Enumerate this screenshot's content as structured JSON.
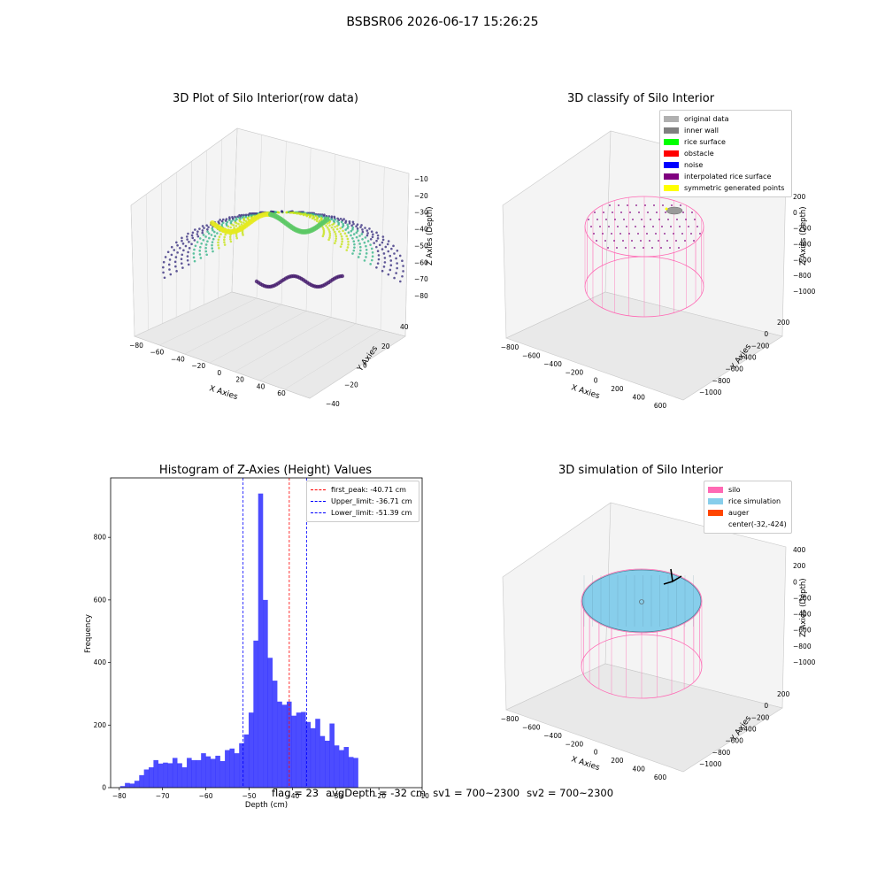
{
  "figure": {
    "title": "BSBSR06 2026-06-17 15:26:25",
    "footer": {
      "flag": "flag = 23",
      "avg_depth": "avgDepth = -32 cm",
      "sv1": "sv1 = 700~2300",
      "sv2": "sv2 = 700~2300"
    }
  },
  "panels": {
    "raw": {
      "title": "3D Plot of Silo Interior(row data)",
      "xlabel": "X Axies",
      "ylabel": "Y Axies",
      "zlabel": "Z Axies (Depth)",
      "x_ticks": [
        "−80",
        "−60",
        "−40",
        "−20",
        "0",
        "20",
        "40",
        "60"
      ],
      "y_ticks": [
        "−40",
        "−20",
        "0",
        "20",
        "40"
      ],
      "z_ticks": [
        "−10",
        "−20",
        "−30",
        "−40",
        "−50",
        "−60",
        "−70",
        "−80"
      ]
    },
    "classify": {
      "title": "3D classify of Silo Interior",
      "xlabel": "X Axies",
      "ylabel": "Y Axies",
      "zlabel": "Z Axies (Depth)",
      "x_ticks": [
        "−800",
        "−600",
        "−400",
        "−200",
        "0",
        "200",
        "400",
        "600"
      ],
      "y_ticks": [
        "200",
        "0",
        "−200",
        "−400",
        "−600",
        "−800",
        "−1000"
      ],
      "z_ticks": [
        "200",
        "0",
        "−200",
        "−400",
        "−600",
        "−800",
        "−1000"
      ],
      "legend": [
        {
          "label": "original data",
          "color": "#b0b0b0"
        },
        {
          "label": "inner wall",
          "color": "#808080"
        },
        {
          "label": "rice surface",
          "color": "#00ff00"
        },
        {
          "label": "obstacle",
          "color": "#ff0000"
        },
        {
          "label": "noise",
          "color": "#0000ff"
        },
        {
          "label": "interpolated rice surface",
          "color": "#800080"
        },
        {
          "label": "symmetric generated points",
          "color": "#ffff00"
        }
      ]
    },
    "simulation": {
      "title": "3D simulation of Silo Interior",
      "xlabel": "X Axies",
      "ylabel": "Y Axies",
      "zlabel": "Z Axies (Depth)",
      "x_ticks": [
        "−800",
        "−600",
        "−400",
        "−200",
        "0",
        "200",
        "400",
        "600"
      ],
      "y_ticks": [
        "200",
        "0",
        "−200",
        "−400",
        "−600",
        "−800",
        "−1000"
      ],
      "z_ticks": [
        "400",
        "200",
        "0",
        "−200",
        "−400",
        "−600",
        "−800",
        "−1000"
      ],
      "legend": [
        {
          "label": "silo",
          "color": "#ff69b4"
        },
        {
          "label": "rice simulation",
          "color": "#87ceeb"
        },
        {
          "label": "auger",
          "color": "#ff4500"
        },
        {
          "label": "center(-32,-424)",
          "color": ""
        }
      ]
    }
  },
  "chart_data": {
    "type": "bar",
    "title": "Histogram of Z-Axies (Height) Values",
    "xlabel": "Depth (cm)",
    "ylabel": "Frequency",
    "xlim": [
      -82,
      -10
    ],
    "ylim": [
      0,
      990
    ],
    "x_ticks": [
      -80,
      -70,
      -60,
      -50,
      -40,
      -30,
      -20,
      -10
    ],
    "y_ticks": [
      0,
      200,
      400,
      600,
      800
    ],
    "bar_color": "#0000ff",
    "bin_start": -79.8,
    "bin_width": 1.1,
    "values": [
      5,
      15,
      13,
      22,
      40,
      58,
      65,
      88,
      77,
      80,
      78,
      95,
      78,
      65,
      95,
      88,
      88,
      110,
      100,
      92,
      102,
      85,
      120,
      125,
      110,
      142,
      170,
      240,
      470,
      940,
      600,
      415,
      342,
      275,
      265,
      275,
      230,
      240,
      242,
      210,
      190,
      220,
      165,
      150,
      205,
      135,
      120,
      130,
      98,
      95
    ],
    "reference_lines": [
      {
        "name": "first_peak: -40.71 cm",
        "x": -40.71,
        "color": "#ff0000"
      },
      {
        "name": "Upper_limit: -36.71 cm",
        "x": -36.71,
        "color": "#0000ff"
      },
      {
        "name": "Lower_limit: -51.39 cm",
        "x": -51.39,
        "color": "#0000ff"
      }
    ]
  }
}
